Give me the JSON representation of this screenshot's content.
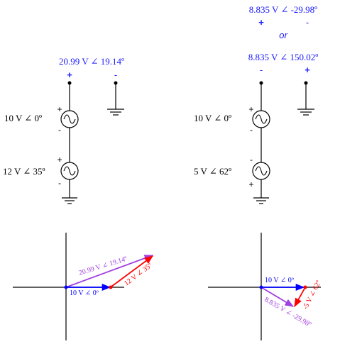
{
  "colors": {
    "wire": "#000000",
    "label_blue": "#1a1aff",
    "vector_blue": "#0000ff",
    "vector_red": "#ff0000",
    "vector_purple": "#a040e0",
    "axis": "#000000"
  },
  "left_circuit": {
    "result_label": "20.99 V ∠ 19.14º",
    "plus": "+",
    "minus": "-",
    "source1": {
      "label": "10 V ∠ 0º",
      "top_pol": "+",
      "bottom_pol": "-"
    },
    "source2": {
      "label": "12 V ∠ 35º",
      "top_pol": "+",
      "bottom_pol": "-"
    }
  },
  "right_circuit": {
    "alt_label": "8.835 V ∠ -29.98º",
    "alt_plus": "+",
    "alt_minus": "-",
    "or": "or",
    "result_label": "8.835 V ∠ 150.02º",
    "minus": "-",
    "plus": "+",
    "source1": {
      "label": "10 V ∠ 0º",
      "top_pol": "+",
      "bottom_pol": "-"
    },
    "source2": {
      "label": "5 V ∠ 62º",
      "top_pol": "-",
      "bottom_pol": "+"
    }
  },
  "left_phasor": {
    "v1_label": "10 V ∠ 0º",
    "v2_label": "12 V ∠ 35º",
    "sum_label": "20.99 V ∠ 19.14º"
  },
  "right_phasor": {
    "v1_label": "10 V ∠ 0º",
    "v2_label": "-5 V ∠ 62º",
    "sum_label": "8.835 V ∠ -29.98º"
  }
}
